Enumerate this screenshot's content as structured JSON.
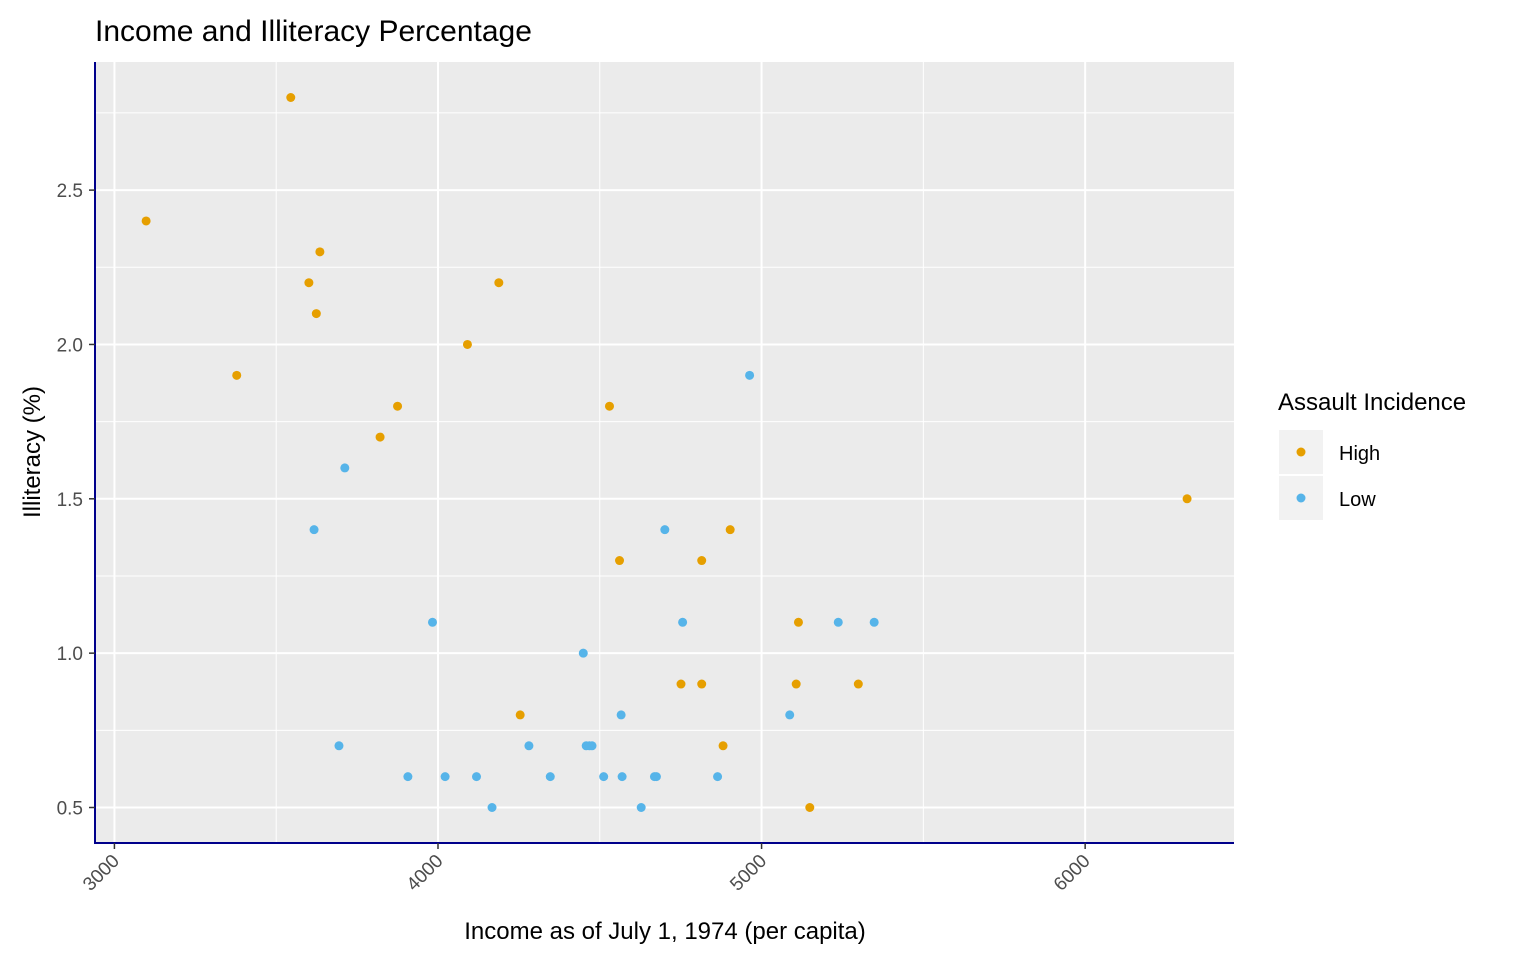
{
  "chart_data": {
    "type": "scatter",
    "title": "Income and Illiteracy Percentage",
    "xlabel": "Income as of July 1, 1974 (per capita)",
    "ylabel": "Illiteracy (%)",
    "xlim": [
      2940,
      6460
    ],
    "ylim": [
      0.385,
      2.915
    ],
    "x_ticks": [
      3000,
      4000,
      5000,
      6000
    ],
    "x_tick_labels": [
      "3000",
      "4000",
      "5000",
      "6000"
    ],
    "x_minor_ticks": [
      3500,
      4500,
      5500
    ],
    "y_ticks": [
      0.5,
      1.0,
      1.5,
      2.0,
      2.5
    ],
    "y_tick_labels": [
      "0.5",
      "1.0",
      "1.5",
      "2.0",
      "2.5"
    ],
    "y_minor_ticks": [
      0.75,
      1.25,
      1.75,
      2.25,
      2.75
    ],
    "grid": true,
    "panel_background": "#ebebeb",
    "axis_line_color": "#00008b",
    "legend": {
      "title": "Assault Incidence",
      "placement": "right"
    },
    "series": [
      {
        "name": "High",
        "color": "#e69f00",
        "points": [
          [
            3098,
            2.4
          ],
          [
            3378,
            1.9
          ],
          [
            3545,
            2.8
          ],
          [
            3601,
            2.2
          ],
          [
            3624,
            2.1
          ],
          [
            3635,
            2.3
          ],
          [
            3821,
            1.7
          ],
          [
            3875,
            1.8
          ],
          [
            4091,
            2.0
          ],
          [
            4188,
            2.2
          ],
          [
            4254,
            0.8
          ],
          [
            4530,
            1.8
          ],
          [
            4561,
            1.3
          ],
          [
            4751,
            0.9
          ],
          [
            4815,
            1.3
          ],
          [
            4815,
            0.9
          ],
          [
            4881,
            0.7
          ],
          [
            4903,
            1.4
          ],
          [
            5107,
            0.9
          ],
          [
            5114,
            1.1
          ],
          [
            5149,
            0.5
          ],
          [
            5299,
            0.9
          ],
          [
            6315,
            1.5
          ]
        ]
      },
      {
        "name": "Low",
        "color": "#56b4e9",
        "points": [
          [
            3617,
            1.4
          ],
          [
            3694,
            0.7
          ],
          [
            3712,
            1.6
          ],
          [
            3907,
            0.6
          ],
          [
            3983,
            1.1
          ],
          [
            4022,
            0.6
          ],
          [
            4119,
            0.6
          ],
          [
            4167,
            0.5
          ],
          [
            4281,
            0.7
          ],
          [
            4347,
            0.6
          ],
          [
            4449,
            1.0
          ],
          [
            4458,
            0.7
          ],
          [
            4468,
            0.7
          ],
          [
            4476,
            0.7
          ],
          [
            4512,
            0.6
          ],
          [
            4566,
            0.8
          ],
          [
            4569,
            0.6
          ],
          [
            4628,
            0.5
          ],
          [
            4669,
            0.6
          ],
          [
            4675,
            0.6
          ],
          [
            4701,
            1.4
          ],
          [
            4756,
            1.1
          ],
          [
            4864,
            0.6
          ],
          [
            4963,
            1.9
          ],
          [
            5087,
            0.8
          ],
          [
            5237,
            1.1
          ],
          [
            5348,
            1.1
          ]
        ]
      }
    ]
  }
}
